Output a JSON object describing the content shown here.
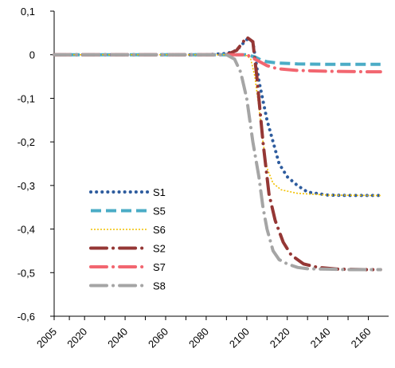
{
  "chart_data": {
    "type": "line",
    "title": "",
    "xlabel": "",
    "ylabel": "",
    "x_tick_labels": [
      "2005",
      "2020",
      "2040",
      "2060",
      "2080",
      "2100",
      "2120",
      "2140",
      "2160"
    ],
    "x_tick_values": [
      2005,
      2020,
      2040,
      2060,
      2080,
      2100,
      2120,
      2140,
      2160
    ],
    "xlim": [
      2005,
      2170
    ],
    "ylim": [
      -0.6,
      0.1
    ],
    "y_tick_values": [
      0.1,
      0,
      -0.1,
      -0.2,
      -0.3,
      -0.4,
      -0.5,
      -0.6
    ],
    "y_tick_labels": [
      "0,1",
      "0",
      "-0,1",
      "-0,2",
      "-0,3",
      "-0,4",
      "-0,5",
      "-0,6"
    ],
    "grid": false,
    "legend_position": "lower-left",
    "series": [
      {
        "name": "S1",
        "color": "#2E5C9E",
        "style": "dotted-round",
        "x": [
          2005,
          2020,
          2040,
          2060,
          2080,
          2090,
          2095,
          2100,
          2103,
          2106,
          2110,
          2113,
          2116,
          2120,
          2125,
          2130,
          2140,
          2150,
          2160,
          2166
        ],
        "y": [
          0,
          0,
          0,
          0,
          0,
          0.003,
          0.01,
          0.035,
          0.03,
          -0.06,
          -0.15,
          -0.2,
          -0.25,
          -0.28,
          -0.3,
          -0.315,
          -0.322,
          -0.323,
          -0.323,
          -0.323
        ]
      },
      {
        "name": "S5",
        "color": "#4BACC6",
        "style": "dashed-thick",
        "x": [
          2005,
          2020,
          2040,
          2060,
          2080,
          2095,
          2100,
          2104,
          2107,
          2110,
          2115,
          2125,
          2140,
          2160,
          2166
        ],
        "y": [
          0,
          0,
          0,
          0,
          0,
          0,
          0,
          -0.005,
          -0.012,
          -0.016,
          -0.019,
          -0.021,
          -0.022,
          -0.022,
          -0.022
        ]
      },
      {
        "name": "S6",
        "color": "#F2C100",
        "style": "dotted-fine",
        "x": [
          2005,
          2020,
          2040,
          2060,
          2080,
          2095,
          2100,
          2102,
          2104,
          2106,
          2108,
          2110,
          2113,
          2117,
          2125,
          2140,
          2160,
          2166
        ],
        "y": [
          0,
          0,
          0,
          0,
          0,
          0,
          -0.002,
          -0.01,
          -0.05,
          -0.12,
          -0.2,
          -0.26,
          -0.295,
          -0.31,
          -0.318,
          -0.322,
          -0.323,
          -0.323
        ]
      },
      {
        "name": "S2",
        "color": "#953735",
        "style": "dash-dot-thick",
        "x": [
          2005,
          2020,
          2040,
          2060,
          2080,
          2090,
          2095,
          2100,
          2103,
          2105,
          2108,
          2111,
          2114,
          2118,
          2122,
          2128,
          2135,
          2145,
          2160,
          2166
        ],
        "y": [
          0,
          0,
          0,
          0,
          0,
          0,
          0.01,
          0.04,
          0.03,
          -0.05,
          -0.2,
          -0.32,
          -0.38,
          -0.43,
          -0.46,
          -0.48,
          -0.488,
          -0.492,
          -0.493,
          -0.493
        ]
      },
      {
        "name": "S7",
        "color": "#F26670",
        "style": "dash-dot-thick",
        "x": [
          2005,
          2020,
          2040,
          2060,
          2080,
          2090,
          2097,
          2100,
          2102,
          2106,
          2110,
          2115,
          2125,
          2140,
          2160,
          2166
        ],
        "y": [
          0,
          0,
          0,
          0,
          0,
          0,
          0,
          0,
          -0.005,
          -0.015,
          -0.025,
          -0.032,
          -0.036,
          -0.038,
          -0.039,
          -0.039
        ]
      },
      {
        "name": "S8",
        "color": "#A5A5A5",
        "style": "dash-dot-thick",
        "x": [
          2005,
          2020,
          2040,
          2060,
          2080,
          2090,
          2094,
          2097,
          2100,
          2103,
          2106,
          2108,
          2110,
          2113,
          2116,
          2120,
          2125,
          2130,
          2140,
          2150,
          2160,
          2166
        ],
        "y": [
          0,
          0,
          0,
          0,
          0,
          0,
          -0.01,
          -0.04,
          -0.1,
          -0.2,
          -0.28,
          -0.35,
          -0.4,
          -0.45,
          -0.47,
          -0.48,
          -0.488,
          -0.491,
          -0.492,
          -0.493,
          -0.493,
          -0.493
        ]
      }
    ]
  }
}
